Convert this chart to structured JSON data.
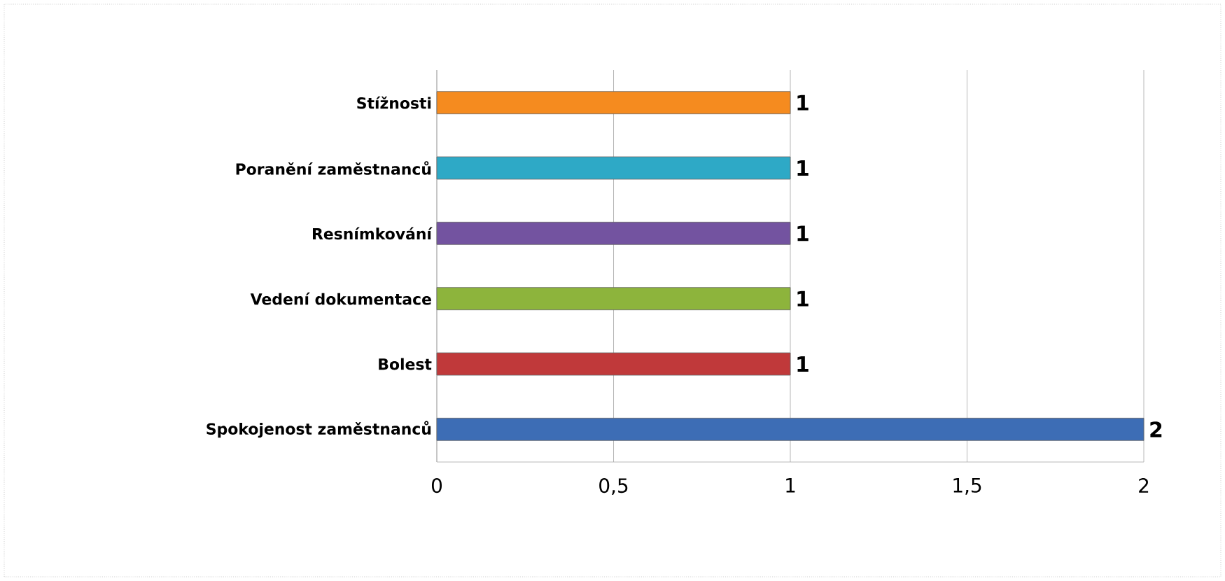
{
  "chart_data": {
    "type": "bar",
    "orientation": "horizontal",
    "categories": [
      "Stížnosti",
      "Poranění zaměstnanců",
      "Resnímkování",
      "Vedení dokumentace",
      "Bolest",
      "Spokojenost zaměstnanců"
    ],
    "values": [
      1,
      1,
      1,
      1,
      1,
      2
    ],
    "colors": [
      "#f58b1f",
      "#2ea9c6",
      "#7353a0",
      "#8db43c",
      "#c0393a",
      "#3d6db5"
    ],
    "xlim": [
      0,
      2
    ],
    "xticks": [
      0,
      {
        "value": 0.5,
        "label": "0,5"
      },
      1,
      {
        "value": 1.5,
        "label": "1,5"
      },
      2
    ],
    "grid": "x",
    "data_labels": true
  }
}
